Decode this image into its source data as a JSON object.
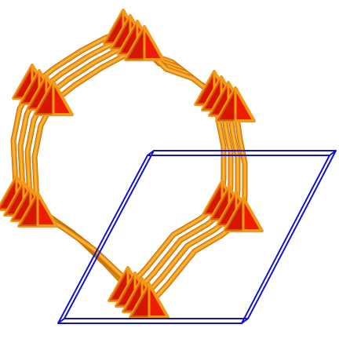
{
  "figure": {
    "title": "",
    "background": "#ffffff"
  },
  "ring": {
    "tetrahedra_count": 6,
    "stack_layers": 4,
    "colors": {
      "tetrahedron_fill": "#ee1c00",
      "tetrahedron_dark": "#b81100",
      "bond": "#f29a17",
      "bond_highlight": "#ffc659",
      "bond_shadow": "#c46f06"
    }
  },
  "unit_cell": {
    "shape": "parallelepiped",
    "color": "#1212c8"
  }
}
